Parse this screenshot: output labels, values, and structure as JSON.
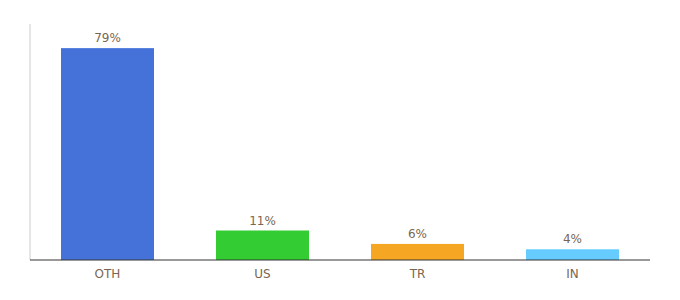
{
  "chart_data": {
    "type": "bar",
    "categories": [
      "OTH",
      "US",
      "TR",
      "IN"
    ],
    "values": [
      79,
      11,
      6,
      4
    ],
    "value_labels": [
      "79%",
      "11%",
      "6%",
      "4%"
    ],
    "colors": [
      "#4472d9",
      "#33cc33",
      "#f5a623",
      "#66ccff"
    ],
    "ylim": [
      0,
      88
    ],
    "grid": false,
    "data_labels": true,
    "tick_labels": "x"
  }
}
